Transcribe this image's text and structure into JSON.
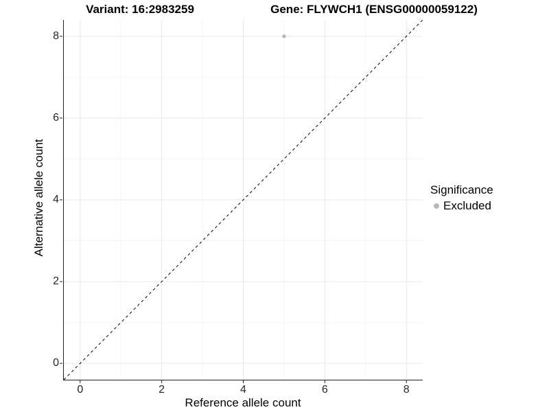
{
  "header": {
    "variant_title": "Variant: 16:2983259",
    "gene_title": "Gene: FLYWCH1 (ENSG00000059122)"
  },
  "chart_data": {
    "type": "scatter",
    "xlabel": "Reference allele count",
    "ylabel": "Alternative allele count",
    "xlim": [
      -0.4,
      8.4
    ],
    "ylim": [
      -0.4,
      8.4
    ],
    "x_ticks": [
      0,
      2,
      4,
      6,
      8
    ],
    "y_ticks": [
      0,
      2,
      4,
      6,
      8
    ],
    "x_minor_ticks": [
      1,
      3,
      5,
      7
    ],
    "y_minor_ticks": [
      1,
      3,
      5,
      7
    ],
    "grid": true,
    "series": [
      {
        "name": "Excluded",
        "color": "#b9b9b9",
        "points": [
          {
            "x": 5,
            "y": 8
          }
        ]
      }
    ],
    "reference_line": {
      "type": "identity",
      "style": "dashed",
      "color": "#000000"
    },
    "legend": {
      "title": "Significance",
      "position": "right",
      "items": [
        {
          "label": "Excluded",
          "color": "#b9b9b9"
        }
      ]
    }
  },
  "colors": {
    "axis_line": "#1f1f1f",
    "grid_major": "#e8e8e8",
    "grid_minor": "#f4f4f4",
    "tick_label": "#262626",
    "point": "#b9b9b9"
  }
}
